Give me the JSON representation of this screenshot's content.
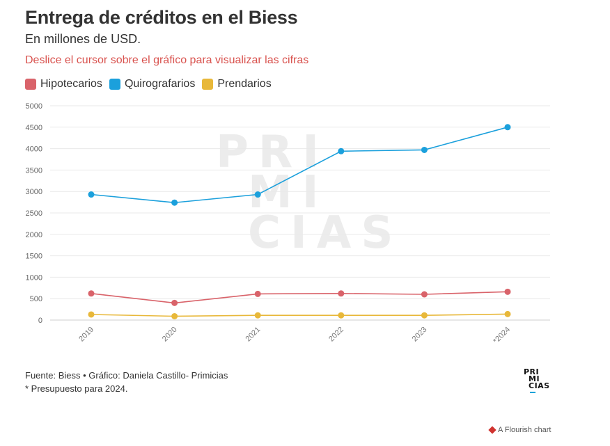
{
  "header": {
    "title": "Entrega de créditos en el Biess",
    "subtitle": "En millones de USD.",
    "hint": "Deslice el cursor sobre el gráfico para visualizar las cifras"
  },
  "legend": [
    {
      "label": "Hipotecarios",
      "color": "#d9636a"
    },
    {
      "label": "Quirografarios",
      "color": "#1ba0dc"
    },
    {
      "label": "Prendarios",
      "color": "#e8b83a"
    }
  ],
  "watermark": {
    "line1": "PRI",
    "line2": "MI",
    "line3": "CIAS"
  },
  "chart_data": {
    "type": "line",
    "categories": [
      "2019",
      "2020",
      "2021",
      "2022",
      "2023",
      "*2024"
    ],
    "series": [
      {
        "name": "Hipotecarios",
        "color": "#d9636a",
        "values": [
          620,
          400,
          610,
          620,
          600,
          660
        ]
      },
      {
        "name": "Quirografarios",
        "color": "#1ba0dc",
        "values": [
          2930,
          2740,
          2930,
          3940,
          3970,
          4500
        ]
      },
      {
        "name": "Prendarios",
        "color": "#e8b83a",
        "values": [
          130,
          90,
          110,
          110,
          110,
          140
        ]
      }
    ],
    "ylim": [
      0,
      5000
    ],
    "yticks": [
      0,
      500,
      1000,
      1500,
      2000,
      2500,
      3000,
      3500,
      4000,
      4500,
      5000
    ],
    "title": "Entrega de créditos en el Biess",
    "xlabel": "",
    "ylabel": ""
  },
  "footer": {
    "source": "Fuente: Biess • Gráfico: Daniela Castillo- Primicias",
    "note": "* Presupuesto para 2024.",
    "logo_line1": "PRI",
    "logo_line2": "MI",
    "logo_line3": "CIAS",
    "flourish": "A Flourish chart"
  }
}
